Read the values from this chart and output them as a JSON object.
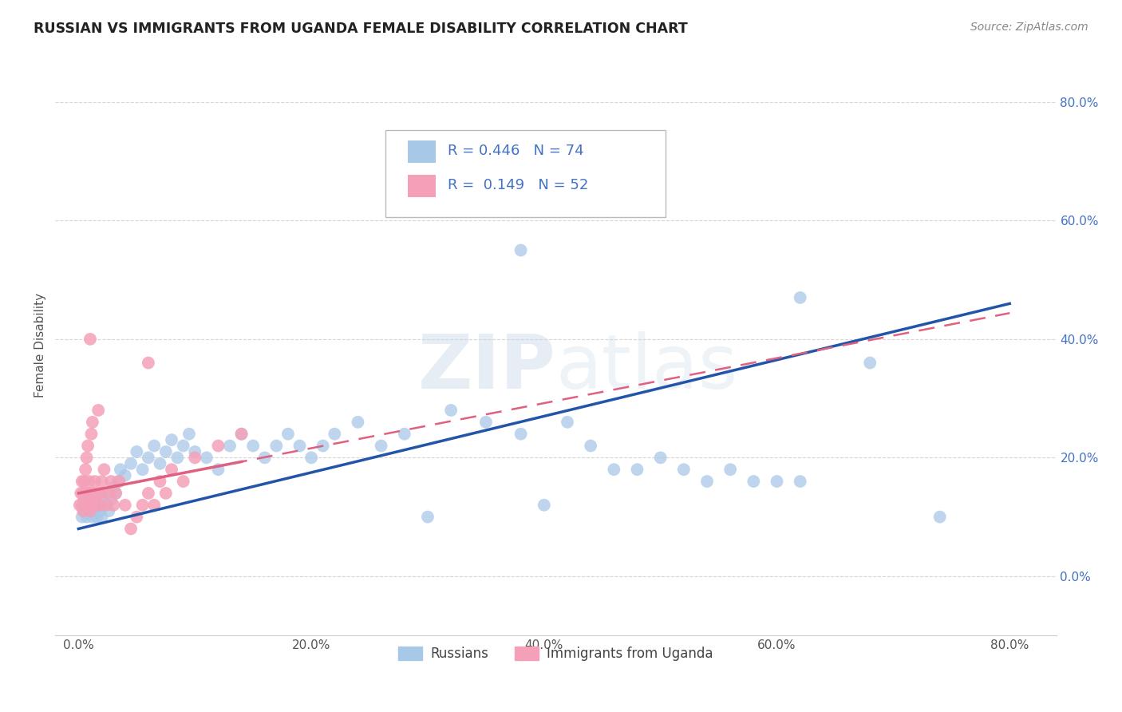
{
  "title": "RUSSIAN VS IMMIGRANTS FROM UGANDA FEMALE DISABILITY CORRELATION CHART",
  "source": "Source: ZipAtlas.com",
  "ylabel": "Female Disability",
  "xlim": [
    -0.02,
    0.84
  ],
  "ylim": [
    -0.1,
    0.88
  ],
  "xticks": [
    0.0,
    0.2,
    0.4,
    0.6,
    0.8
  ],
  "yticks": [
    0.0,
    0.2,
    0.4,
    0.6,
    0.8
  ],
  "russian_R": 0.446,
  "russian_N": 74,
  "uganda_R": 0.149,
  "uganda_N": 52,
  "russian_color": "#a8c8e8",
  "uganda_color": "#f4a0b8",
  "russian_line_color": "#2255aa",
  "uganda_line_color": "#e06080",
  "legend_russian_label": "Russians",
  "legend_uganda_label": "Immigrants from Uganda",
  "watermark": "ZIPatlas",
  "russian_x": [
    0.003,
    0.004,
    0.005,
    0.006,
    0.007,
    0.008,
    0.009,
    0.01,
    0.011,
    0.012,
    0.013,
    0.014,
    0.015,
    0.016,
    0.017,
    0.018,
    0.019,
    0.02,
    0.022,
    0.024,
    0.026,
    0.028,
    0.03,
    0.032,
    0.034,
    0.036,
    0.04,
    0.045,
    0.05,
    0.055,
    0.06,
    0.065,
    0.07,
    0.075,
    0.08,
    0.085,
    0.09,
    0.095,
    0.1,
    0.11,
    0.12,
    0.13,
    0.14,
    0.15,
    0.16,
    0.17,
    0.18,
    0.19,
    0.2,
    0.21,
    0.22,
    0.24,
    0.26,
    0.28,
    0.3,
    0.32,
    0.35,
    0.38,
    0.4,
    0.42,
    0.44,
    0.46,
    0.48,
    0.5,
    0.52,
    0.54,
    0.56,
    0.58,
    0.6,
    0.62,
    0.38,
    0.62,
    0.68,
    0.74
  ],
  "russian_y": [
    0.1,
    0.12,
    0.11,
    0.13,
    0.1,
    0.12,
    0.14,
    0.11,
    0.13,
    0.1,
    0.12,
    0.11,
    0.13,
    0.1,
    0.12,
    0.11,
    0.13,
    0.1,
    0.12,
    0.14,
    0.11,
    0.13,
    0.15,
    0.14,
    0.16,
    0.18,
    0.17,
    0.19,
    0.21,
    0.18,
    0.2,
    0.22,
    0.19,
    0.21,
    0.23,
    0.2,
    0.22,
    0.24,
    0.21,
    0.2,
    0.18,
    0.22,
    0.24,
    0.22,
    0.2,
    0.22,
    0.24,
    0.22,
    0.2,
    0.22,
    0.24,
    0.26,
    0.22,
    0.24,
    0.1,
    0.28,
    0.26,
    0.24,
    0.12,
    0.26,
    0.22,
    0.18,
    0.18,
    0.2,
    0.18,
    0.16,
    0.18,
    0.16,
    0.16,
    0.16,
    0.55,
    0.47,
    0.36,
    0.1
  ],
  "uganda_x": [
    0.001,
    0.002,
    0.003,
    0.003,
    0.004,
    0.004,
    0.005,
    0.005,
    0.006,
    0.006,
    0.007,
    0.007,
    0.008,
    0.008,
    0.009,
    0.009,
    0.01,
    0.01,
    0.011,
    0.011,
    0.012,
    0.012,
    0.013,
    0.014,
    0.015,
    0.016,
    0.017,
    0.018,
    0.019,
    0.02,
    0.022,
    0.024,
    0.026,
    0.028,
    0.03,
    0.032,
    0.035,
    0.04,
    0.045,
    0.05,
    0.055,
    0.06,
    0.065,
    0.07,
    0.075,
    0.08,
    0.09,
    0.1,
    0.12,
    0.14,
    0.01,
    0.06
  ],
  "uganda_y": [
    0.12,
    0.14,
    0.12,
    0.16,
    0.11,
    0.14,
    0.13,
    0.16,
    0.12,
    0.18,
    0.14,
    0.2,
    0.12,
    0.22,
    0.13,
    0.16,
    0.11,
    0.14,
    0.12,
    0.24,
    0.13,
    0.26,
    0.14,
    0.16,
    0.12,
    0.14,
    0.28,
    0.12,
    0.14,
    0.16,
    0.18,
    0.12,
    0.14,
    0.16,
    0.12,
    0.14,
    0.16,
    0.12,
    0.08,
    0.1,
    0.12,
    0.14,
    0.12,
    0.16,
    0.14,
    0.18,
    0.16,
    0.2,
    0.22,
    0.24,
    0.4,
    0.36
  ]
}
